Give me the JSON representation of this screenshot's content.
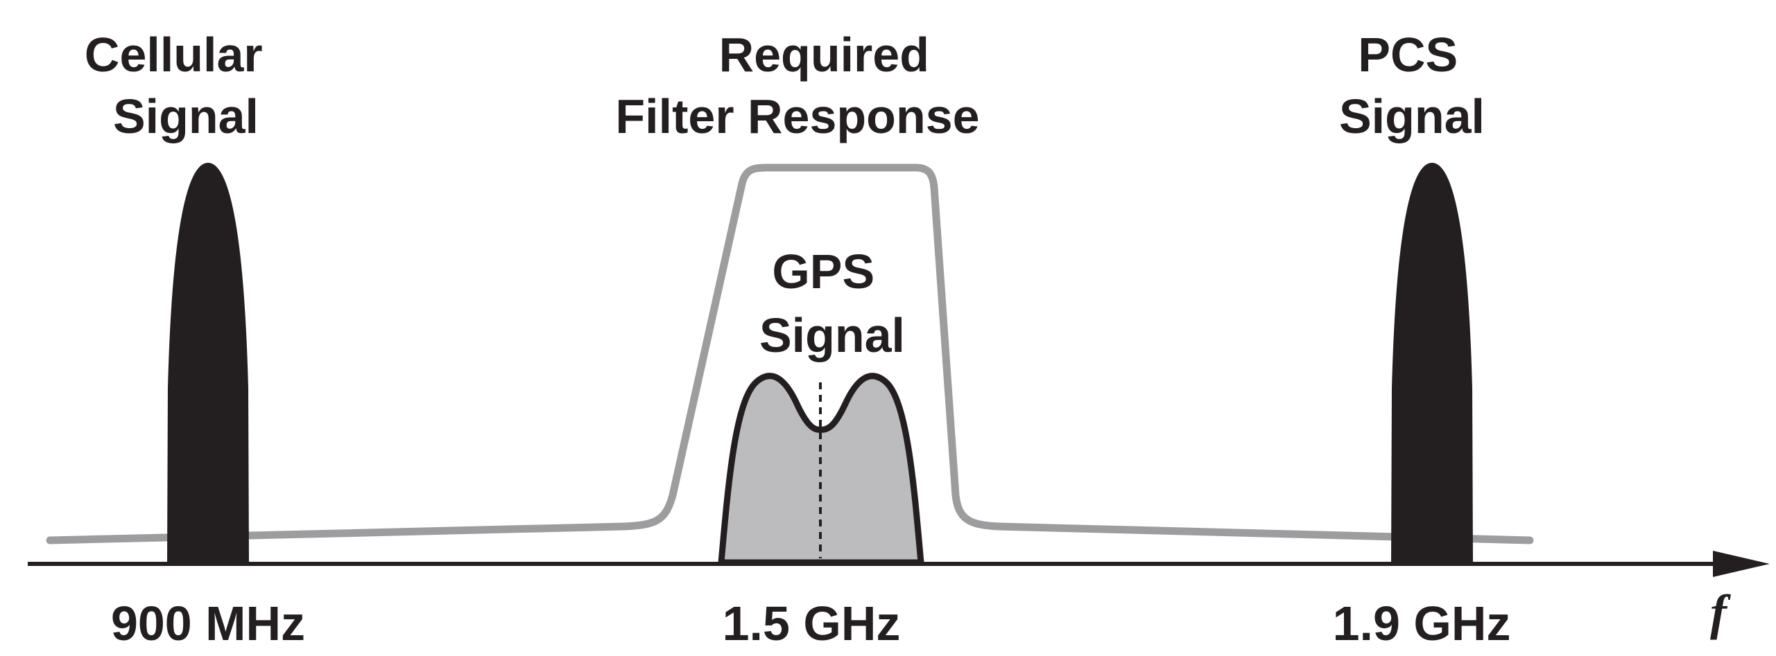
{
  "labels": {
    "cellular": [
      "Cellular",
      "Signal"
    ],
    "filter": [
      "Required",
      "Filter Response"
    ],
    "pcs": [
      "PCS",
      "Signal"
    ],
    "gps": [
      "GPS",
      "Signal"
    ]
  },
  "frequencies": {
    "cellular": "900 MHz",
    "gps": "1.5 GHz",
    "pcs": "1.9 GHz"
  },
  "axis": {
    "variable": "f"
  },
  "colors": {
    "ink": "#231f20",
    "filter_curve": "#9d9d9f",
    "gps_fill": "#bcbcbe"
  }
}
